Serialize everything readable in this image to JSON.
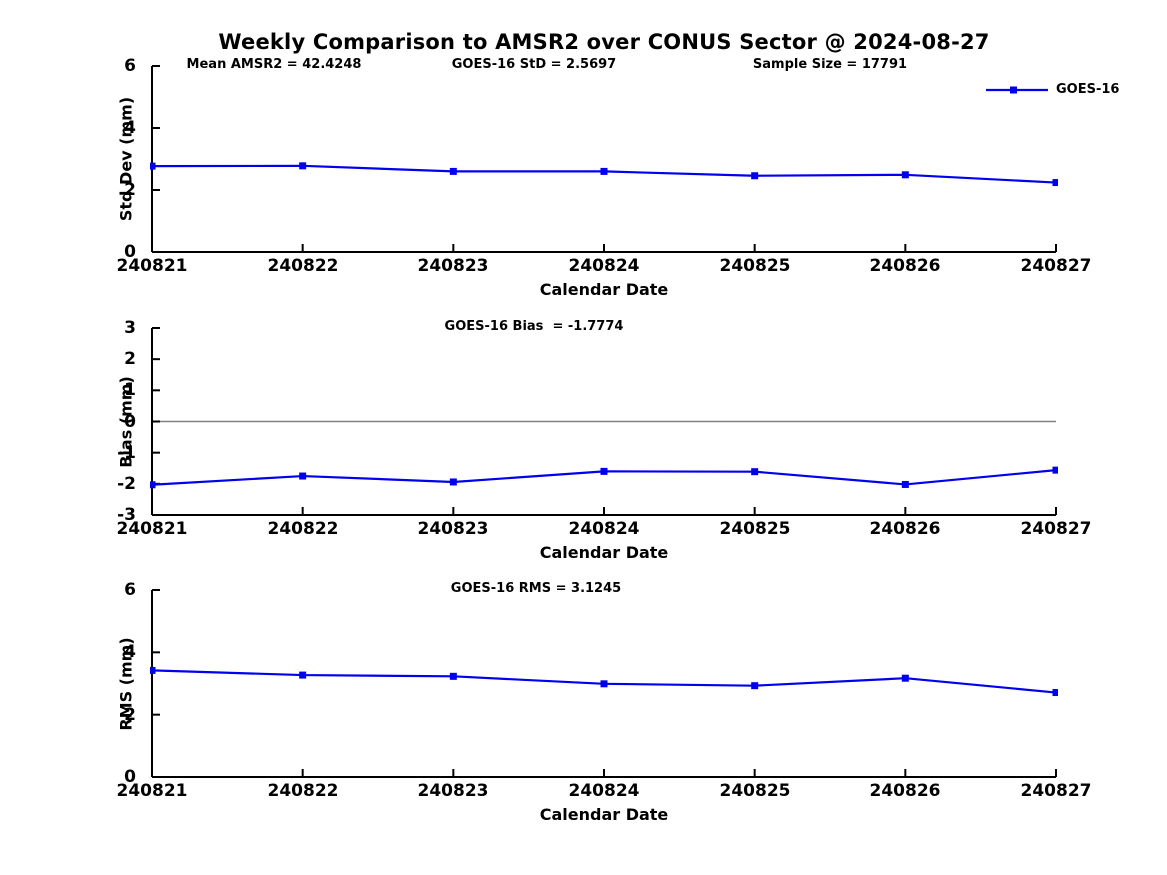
{
  "title": "Weekly Comparison to AMSR2 over CONUS Sector @ 2024-08-27",
  "legend": {
    "label": "GOES-16"
  },
  "line_color": "#0000EE",
  "zero_line_color": "#808080",
  "axis_color": "#000000",
  "chart_data": [
    {
      "name": "std-dev",
      "type": "line",
      "categories": [
        "240821",
        "240822",
        "240823",
        "240824",
        "240825",
        "240826",
        "240827"
      ],
      "series": [
        {
          "name": "GOES-16",
          "values": [
            2.77,
            2.78,
            2.6,
            2.6,
            2.46,
            2.49,
            2.24
          ]
        }
      ],
      "xlabel": "Calendar Date",
      "ylabel": "Std Dev (mm)",
      "ylim": [
        0,
        6
      ],
      "yticks": [
        0,
        2,
        4,
        6
      ],
      "zero_line": false,
      "grid": false,
      "legend_position": "top-right-outside",
      "annotations": [
        "Mean AMSR2 = 42.4248",
        "GOES-16 StD = 2.5697",
        "Sample Size = 17791"
      ]
    },
    {
      "name": "bias",
      "type": "line",
      "categories": [
        "240821",
        "240822",
        "240823",
        "240824",
        "240825",
        "240826",
        "240827"
      ],
      "series": [
        {
          "name": "GOES-16",
          "values": [
            -2.03,
            -1.75,
            -1.94,
            -1.6,
            -1.61,
            -2.02,
            -1.56
          ]
        }
      ],
      "xlabel": "Calendar Date",
      "ylabel": "Bias (mm)",
      "ylim": [
        -3,
        3
      ],
      "yticks": [
        -3,
        -2,
        -1,
        0,
        1,
        2,
        3
      ],
      "zero_line": true,
      "grid": false,
      "annotations": [
        "GOES-16 Bias  = -1.7774"
      ]
    },
    {
      "name": "rms",
      "type": "line",
      "categories": [
        "240821",
        "240822",
        "240823",
        "240824",
        "240825",
        "240826",
        "240827"
      ],
      "series": [
        {
          "name": "GOES-16",
          "values": [
            3.42,
            3.27,
            3.23,
            2.99,
            2.93,
            3.17,
            2.71
          ]
        }
      ],
      "xlabel": "Calendar Date",
      "ylabel": "RMS (mm)",
      "ylim": [
        0,
        6
      ],
      "yticks": [
        0,
        2,
        4,
        6
      ],
      "zero_line": false,
      "grid": false,
      "annotations": [
        "GOES-16 RMS = 3.1245"
      ]
    }
  ]
}
